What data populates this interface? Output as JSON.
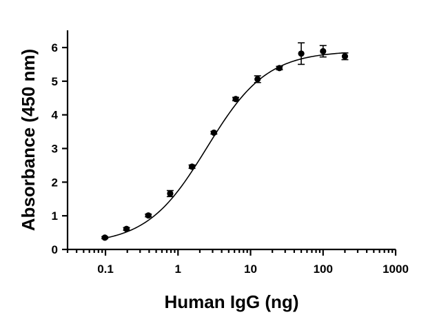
{
  "chart_data": {
    "type": "scatter",
    "title": "",
    "xlabel": "Human IgG (ng)",
    "ylabel": "Absorbance (450 nm)",
    "x_scale": "log",
    "xlim": [
      0.03,
      1000
    ],
    "ylim": [
      0,
      6.5
    ],
    "x_ticks": [
      0.1,
      1,
      10,
      100,
      1000
    ],
    "x_tick_labels": [
      "0.1",
      "1",
      "10",
      "100",
      "1000"
    ],
    "y_ticks": [
      0,
      1,
      2,
      3,
      4,
      5,
      6
    ],
    "y_tick_labels": [
      "0",
      "1",
      "2",
      "3",
      "4",
      "5",
      "6"
    ],
    "grid": false,
    "legend": "none",
    "marker_color": "#000000",
    "series": [
      {
        "x": [
          0.098,
          0.195,
          0.39,
          0.78,
          1.56,
          3.125,
          6.25,
          12.5,
          25,
          50,
          100,
          200
        ],
        "y": [
          0.35,
          0.61,
          1.01,
          1.66,
          2.46,
          3.47,
          4.47,
          5.06,
          5.39,
          5.82,
          5.89,
          5.74
        ],
        "error": [
          0.03,
          0.04,
          0.04,
          0.09,
          0.05,
          0.04,
          0.05,
          0.1,
          0.05,
          0.32,
          0.17,
          0.1
        ]
      }
    ],
    "fit_curve": {
      "model": "4PL",
      "bottom": 0.15,
      "top": 5.9,
      "ec50": 2.5,
      "hill": 1.05
    }
  }
}
